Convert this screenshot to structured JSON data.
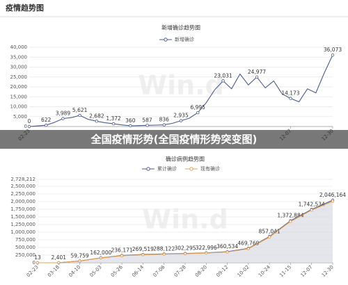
{
  "header": {
    "title": "疫情趋势图"
  },
  "banner": "全国疫情形势(全国疫情形势突变图)",
  "watermark": "Win.d",
  "chart_data": [
    {
      "type": "line",
      "title": "新增确诊趋势图",
      "categories": [
        "02-23",
        null,
        null,
        null,
        null,
        null,
        null,
        null,
        null,
        null,
        null,
        null,
        null,
        null,
        null,
        null,
        null,
        null,
        null,
        null,
        null,
        null,
        null,
        null,
        null,
        null,
        null,
        null,
        null,
        null,
        null,
        "12-07",
        null,
        null,
        null,
        null,
        "12-30"
      ],
      "series": [
        {
          "name": "新增确诊",
          "color": "#4a5b8c",
          "values": [
            0,
            300,
            622,
            2100,
            3989,
            4500,
            5621,
            3600,
            2682,
            1900,
            1372,
            800,
            360,
            450,
            587,
            700,
            836,
            1600,
            2935,
            4200,
            6995,
            12000,
            18500,
            23031,
            19000,
            26500,
            21000,
            24977,
            19500,
            23000,
            16500,
            14173,
            12500,
            19000,
            17000,
            27000,
            36073
          ],
          "value_labels": [
            "0",
            null,
            "622",
            null,
            "3,989",
            null,
            "5,621",
            null,
            "2,682",
            null,
            "1,372",
            null,
            "360",
            null,
            "587",
            null,
            "836",
            null,
            "2,935",
            null,
            "6,995",
            null,
            null,
            "23,031",
            null,
            null,
            null,
            "24,977",
            null,
            null,
            null,
            "14,173",
            null,
            null,
            null,
            null,
            "36,073"
          ]
        }
      ],
      "ylim": [
        0,
        40000
      ],
      "yticks": [
        0,
        {
          "value": 5000,
          "label": "5,000"
        },
        {
          "value": 10000,
          "label": "10,000"
        },
        {
          "value": 15000,
          "label": "15,000"
        },
        {
          "value": 20000,
          "label": "20,000"
        },
        {
          "value": 25000,
          "label": "25,000"
        },
        {
          "value": 30000,
          "label": "30,000"
        },
        {
          "value": 35000,
          "label": "35,000"
        },
        {
          "value": 40000,
          "label": "40,000"
        }
      ],
      "grid": true
    },
    {
      "type": "line",
      "title": "确诊病例趋势图",
      "area": true,
      "categories": [
        "02-23",
        "03-18",
        "04-10",
        "05-03",
        "05-26",
        "06-14",
        "07-06",
        "07-28",
        "08-20",
        "09-12",
        "10-02",
        "10-24",
        "11-15",
        "12-07",
        "12-30"
      ],
      "series": [
        {
          "name": "累计确诊",
          "color": "#4a5b8c",
          "values": [
            13,
            2401,
            59759,
            162000,
            236171,
            269519,
            288122,
            302295,
            322996,
            360534,
            469769,
            857041,
            1372884,
            1742534,
            2046164
          ],
          "value_labels": [
            "13",
            "2,401",
            "59,759",
            "162,000",
            "236,171",
            "269,519",
            "288,122",
            "302,295",
            "322,996",
            "360,534",
            "469,769",
            "857,041",
            "1,372,884",
            "1,742,534",
            "2,046,164"
          ]
        },
        {
          "name": "现有确诊",
          "color": "#e8a050",
          "values": [
            10,
            2300,
            57000,
            158000,
            230000,
            262000,
            280000,
            295000,
            315000,
            352000,
            458000,
            840000,
            1350000,
            1720000,
            2010000
          ]
        }
      ],
      "ylim": [
        0,
        2728212
      ],
      "yticks": [
        0,
        {
          "value": 250000,
          "label": "250,000"
        },
        {
          "value": 500000,
          "label": "500,000"
        },
        {
          "value": 750000,
          "label": "750,000"
        },
        {
          "value": 1000000,
          "label": "1,000,000"
        },
        {
          "value": 1250000,
          "label": "1,250,000"
        },
        {
          "value": 1500000,
          "label": "1,500,000"
        },
        {
          "value": 1750000,
          "label": "1,750,000"
        },
        {
          "value": 2000000,
          "label": "2,000,000"
        },
        {
          "value": 2250000,
          "label": "2,250,000"
        },
        {
          "value": 2500000,
          "label": "2,500,000"
        },
        {
          "value": 2728212,
          "label": "2,728,212"
        }
      ],
      "grid": true
    }
  ]
}
